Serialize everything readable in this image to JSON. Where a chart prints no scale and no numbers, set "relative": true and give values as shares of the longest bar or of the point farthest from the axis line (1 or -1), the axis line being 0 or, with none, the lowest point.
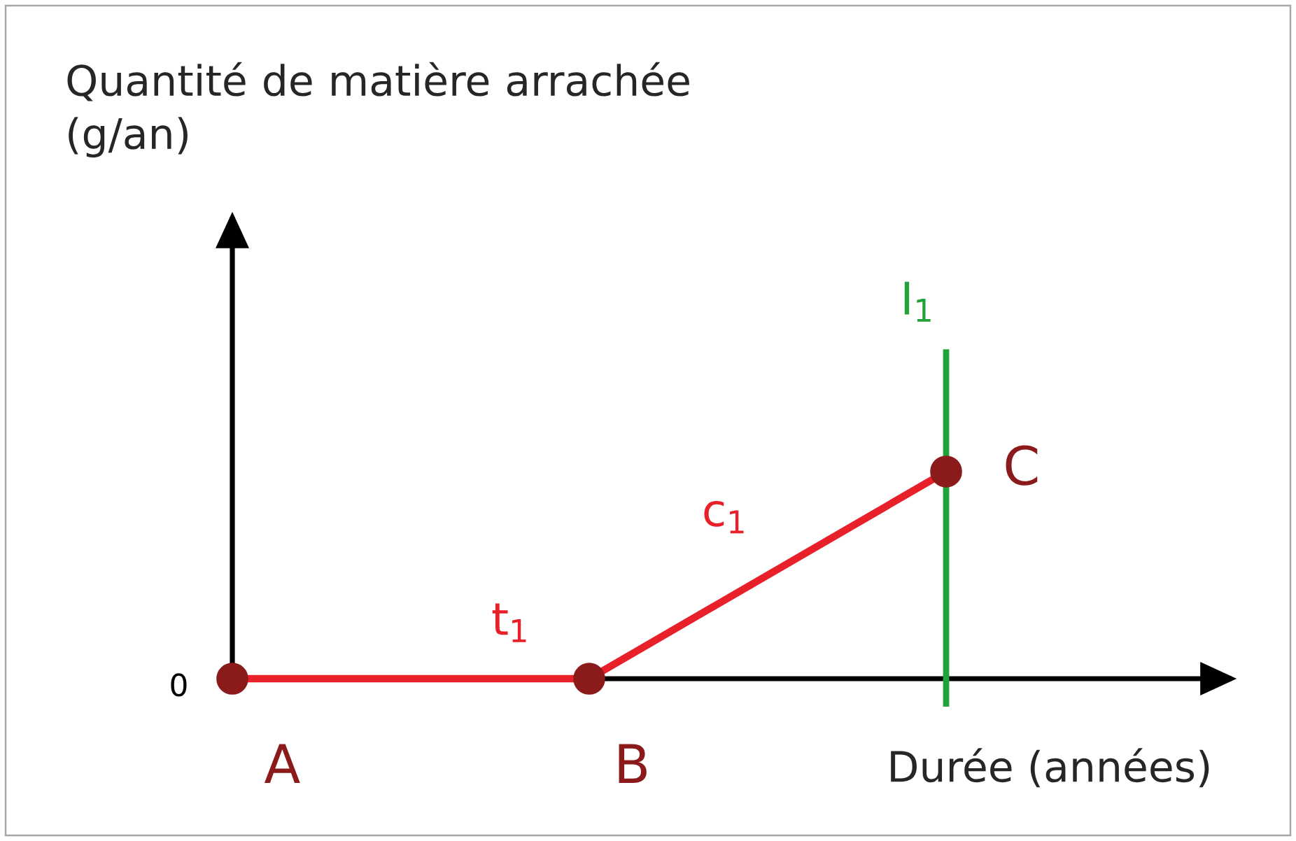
{
  "chart_data": {
    "type": "line",
    "relative": true,
    "xlabel": "Durée (années)",
    "categories": [
      null,
      null,
      null
    ],
    "series": [
      {
        "color": "#e8202a",
        "values": [
          0,
          0,
          1
        ]
      }
    ],
    "marker": "circle",
    "annotations": [
      "Quantité de matière arrachée (g/an)",
      "0",
      "A",
      "B",
      "C",
      "t$_{1}$",
      "c$_{1}$",
      "I$_{1}$"
    ]
  }
}
